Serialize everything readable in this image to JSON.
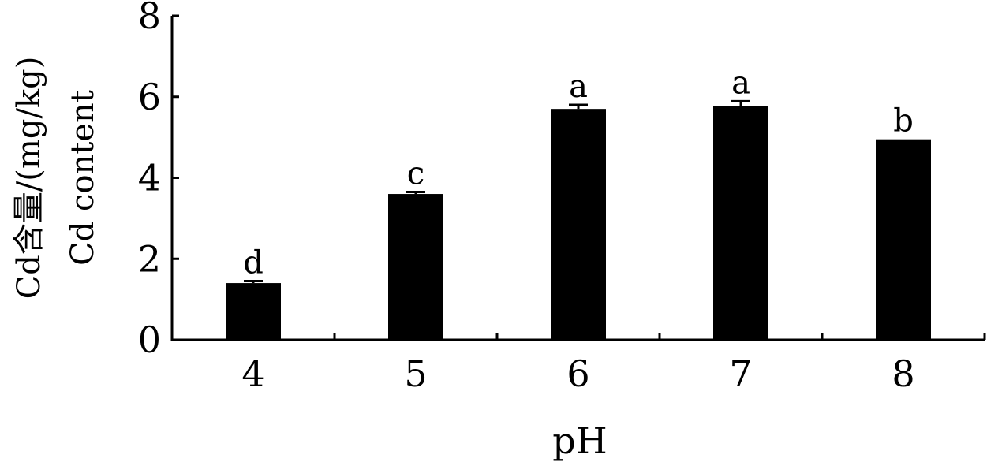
{
  "chart_data": {
    "type": "bar",
    "categories": [
      "4",
      "5",
      "6",
      "7",
      "8"
    ],
    "values": [
      1.4,
      3.6,
      5.7,
      5.77,
      4.95
    ],
    "errors": [
      0.05,
      0.05,
      0.1,
      0.12,
      0.0
    ],
    "significance_letters": [
      "d",
      "c",
      "a",
      "a",
      "b"
    ],
    "xlabel": "pH",
    "ylabel_lines": [
      "Cd含量/(mg/kg)",
      "Cd content"
    ],
    "ylim": [
      0,
      8
    ],
    "yticks": [
      "0",
      "2",
      "4",
      "6",
      "8"
    ],
    "grid": false,
    "legend": "none",
    "bar_color": "#000000"
  }
}
